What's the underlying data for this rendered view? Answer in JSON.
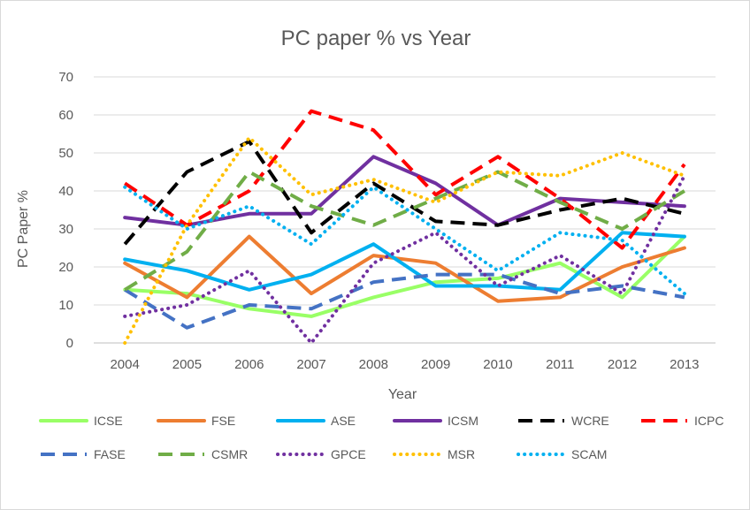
{
  "chart_data": {
    "type": "line",
    "title": "PC paper % vs Year",
    "xlabel": "Year",
    "ylabel": "PC Paper %",
    "ylim": [
      0,
      70
    ],
    "yticks": [
      0,
      10,
      20,
      30,
      40,
      50,
      60,
      70
    ],
    "grid": true,
    "legend_position": "bottom",
    "categories": [
      "2004",
      "2005",
      "2006",
      "2007",
      "2008",
      "2009",
      "2010",
      "2011",
      "2012",
      "2013"
    ],
    "series": [
      {
        "name": "ICSE",
        "color": "#99ff66",
        "dash": "solid",
        "values": [
          14,
          13,
          9,
          7,
          12,
          16,
          17,
          21,
          12,
          28
        ]
      },
      {
        "name": "FSE",
        "color": "#ed7d31",
        "dash": "solid",
        "values": [
          21,
          12,
          28,
          13,
          23,
          21,
          11,
          12,
          20,
          25
        ]
      },
      {
        "name": "ASE",
        "color": "#00b0f0",
        "dash": "solid",
        "values": [
          22,
          19,
          14,
          18,
          26,
          15,
          15,
          14,
          29,
          28
        ]
      },
      {
        "name": "ICSM",
        "color": "#7030a0",
        "dash": "solid",
        "values": [
          33,
          31,
          34,
          34,
          49,
          42,
          31,
          38,
          37,
          36
        ]
      },
      {
        "name": "WCRE",
        "color": "#000000",
        "dash": "longdash",
        "values": [
          26,
          45,
          53,
          29,
          42,
          32,
          31,
          35,
          38,
          34
        ]
      },
      {
        "name": "ICPC",
        "color": "#ff0000",
        "dash": "longdash",
        "values": [
          42,
          31,
          40,
          61,
          56,
          39,
          49,
          38,
          25,
          47
        ]
      },
      {
        "name": "FASE",
        "color": "#4472c4",
        "dash": "longdash",
        "values": [
          14,
          4,
          10,
          9,
          16,
          18,
          18,
          13,
          15,
          12
        ]
      },
      {
        "name": "CSMR",
        "color": "#70ad47",
        "dash": "longdash",
        "values": [
          14,
          24,
          45,
          36,
          31,
          38,
          45,
          37,
          30,
          40
        ]
      },
      {
        "name": "GPCE",
        "color": "#7030a0",
        "dash": "dot",
        "values": [
          7,
          10,
          19,
          0,
          21,
          29,
          15,
          23,
          13,
          44
        ]
      },
      {
        "name": "MSR",
        "color": "#ffc000",
        "dash": "dot",
        "values": [
          0,
          31,
          54,
          39,
          43,
          37,
          45,
          44,
          50,
          44
        ]
      },
      {
        "name": "SCAM",
        "color": "#00b0f0",
        "dash": "dot",
        "values": [
          41,
          30,
          36,
          26,
          41,
          30,
          19,
          29,
          27,
          13
        ]
      }
    ]
  }
}
